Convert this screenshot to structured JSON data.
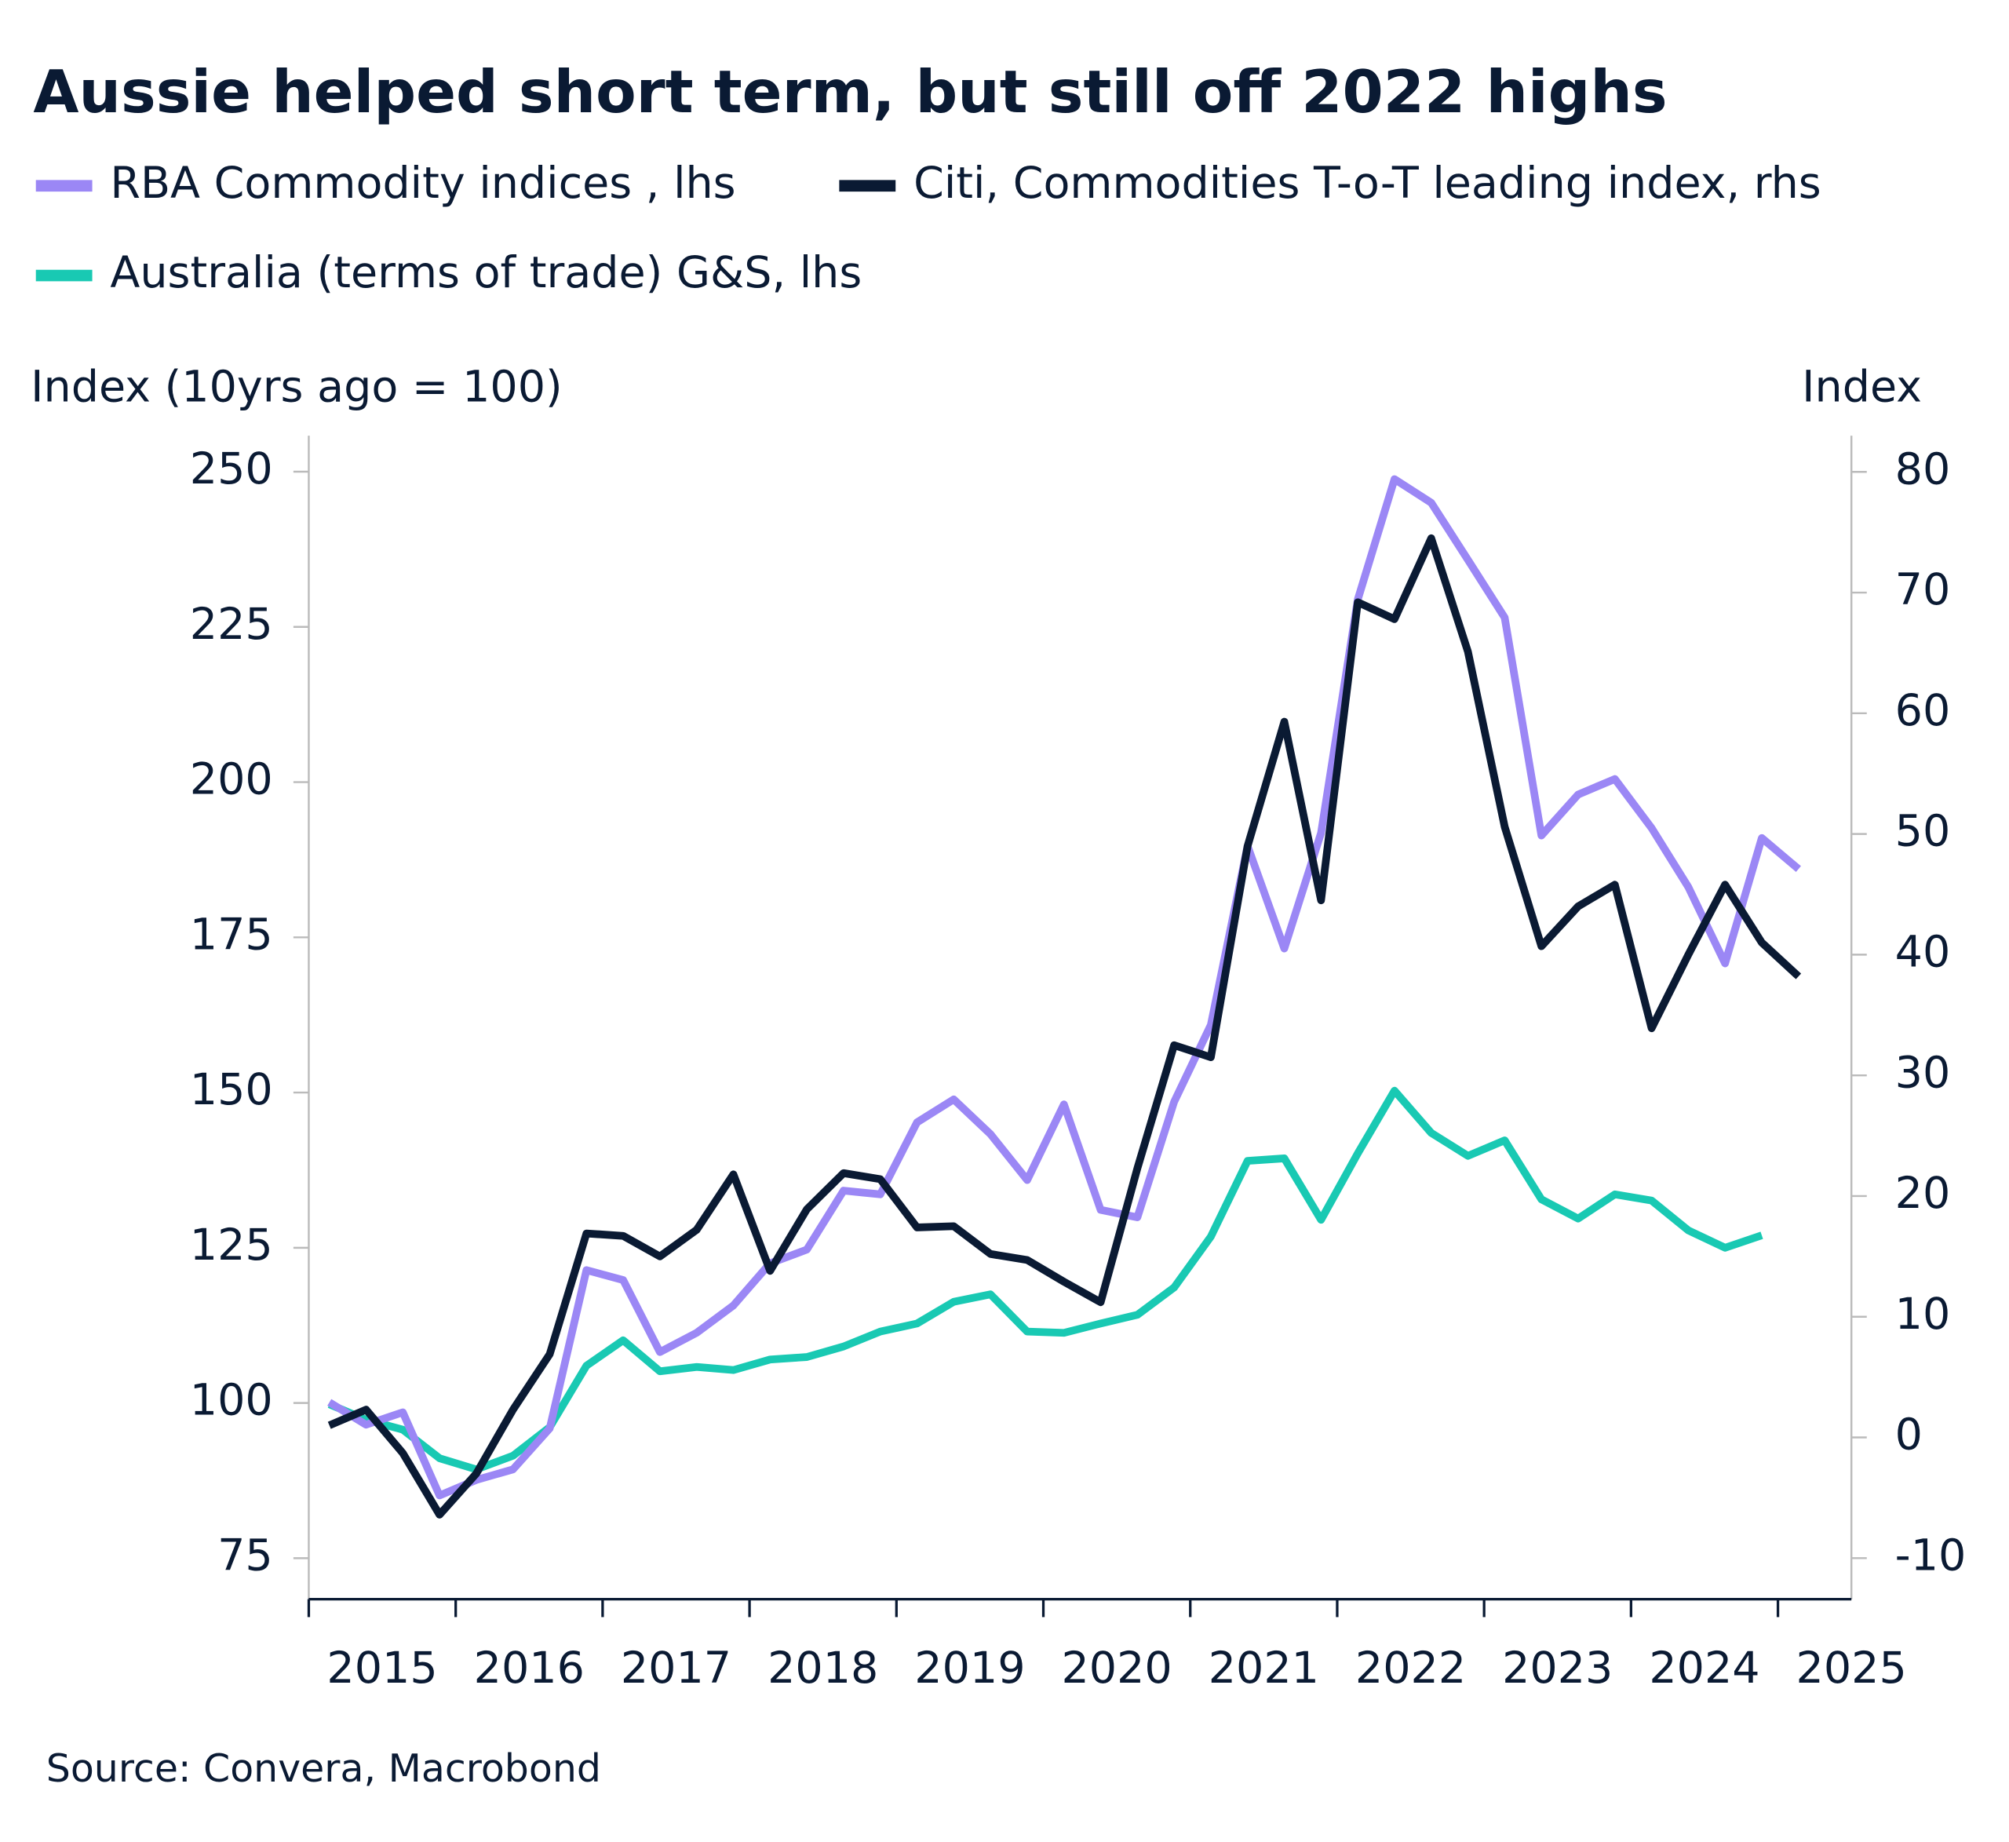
{
  "chart_data": {
    "type": "line",
    "title": "Aussie helped short term, but still off 2022 highs",
    "y_label": "Index (10yrs ago = 100)",
    "y2_label": "Index",
    "source": "Source: Convera, Macrobond",
    "x": [
      2015.14,
      2015.39,
      2015.64,
      2015.89,
      2016.14,
      2016.39,
      2016.64,
      2016.89,
      2017.14,
      2017.39,
      2017.64,
      2017.89,
      2018.14,
      2018.39,
      2018.64,
      2018.89,
      2019.14,
      2019.39,
      2019.64,
      2019.89,
      2020.14,
      2020.39,
      2020.64,
      2020.89,
      2021.14,
      2021.39,
      2021.64,
      2021.89,
      2022.14,
      2022.39,
      2022.64,
      2022.89,
      2023.14,
      2023.39,
      2023.64,
      2023.89,
      2024.14,
      2024.39,
      2024.64,
      2024.89,
      2025.14
    ],
    "xlim": [
      2015,
      2025.5
    ],
    "xticks": [
      2015,
      2016,
      2017,
      2018,
      2019,
      2020,
      2021,
      2022,
      2023,
      2024,
      2025
    ],
    "ylim": [
      68.4,
      255.8
    ],
    "yticks": [
      75,
      100,
      125,
      150,
      175,
      200,
      225,
      250
    ],
    "y2lim": [
      -13.4,
      83
    ],
    "y2ticks": [
      -10,
      0,
      10,
      20,
      30,
      40,
      50,
      60,
      70,
      80
    ],
    "series": [
      {
        "name": "RBA Commodity indices , lhs",
        "color": "#9b87f5",
        "values": [
          100.1,
          96.5,
          98.5,
          85.1,
          87.6,
          89.3,
          95.9,
          121.4,
          119.8,
          108.2,
          111.3,
          115.7,
          122.5,
          124.7,
          134.2,
          133.6,
          145.2,
          148.9,
          143.3,
          135.9,
          148.1,
          131.1,
          129.9,
          148.5,
          160.9,
          189.7,
          173.2,
          191.8,
          229.4,
          248.8,
          245.0,
          235.8,
          226.5,
          191.4,
          198.0,
          200.5,
          192.6,
          183.1,
          170.8,
          191.0,
          186.0
        ]
      },
      {
        "name": "Citi, Commodities T-o-T leading index, rhs",
        "color": "#0a1a33",
        "axis": "y2",
        "values": [
          1.0,
          2.3,
          -1.3,
          -6.4,
          -3.0,
          2.3,
          6.9,
          16.9,
          16.7,
          15.0,
          17.2,
          21.8,
          13.8,
          18.9,
          21.9,
          21.4,
          17.4,
          17.5,
          15.2,
          14.7,
          12.9,
          11.2,
          22.3,
          32.5,
          31.5,
          49.0,
          59.3,
          44.5,
          69.2,
          67.8,
          74.5,
          65.1,
          50.6,
          40.7,
          44.0,
          45.8,
          33.9,
          40.0,
          45.8,
          41.0,
          38.2
        ]
      },
      {
        "name": "Australia (terms of trade) G&S, lhs",
        "color": "#19c9b3",
        "values": [
          99.8,
          97.3,
          95.7,
          91.1,
          89.3,
          91.5,
          96.1,
          106.0,
          110.1,
          105.1,
          105.8,
          105.3,
          107.0,
          107.4,
          109.1,
          111.5,
          112.8,
          116.3,
          117.5,
          111.5,
          111.3,
          112.8,
          114.2,
          118.6,
          126.8,
          139.0,
          139.4,
          129.5,
          140.2,
          150.3,
          143.5,
          139.8,
          142.3,
          132.8,
          129.7,
          133.6,
          132.6,
          127.8,
          125.0,
          127.0,
          null
        ]
      }
    ]
  }
}
